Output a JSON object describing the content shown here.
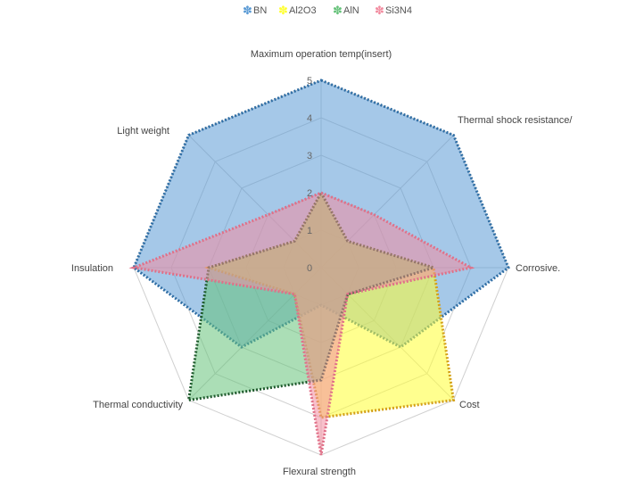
{
  "chart_data": {
    "type": "radar",
    "axes": [
      "Maximum operation temp(insert)",
      "Thermal shock resistance/",
      "Corrosive.",
      "Cost",
      "Flexural strength",
      "Thermal conductivity",
      "Insulation",
      "Light weight"
    ],
    "ticks": [
      "0",
      "1",
      "2",
      "3",
      "4",
      "5"
    ],
    "range": [
      0,
      5
    ],
    "grid": true,
    "legend_position": "top",
    "series": [
      {
        "name": "BN",
        "values": [
          5,
          5,
          5,
          3,
          1,
          3,
          5,
          5
        ],
        "color": "#5b9bd5",
        "border": "#2e6da4"
      },
      {
        "name": "Al2O3",
        "values": [
          2,
          1,
          3,
          5,
          4,
          1,
          3,
          1
        ],
        "color": "#ffff33",
        "border": "#d4a017"
      },
      {
        "name": "AlN",
        "values": [
          2,
          1,
          3,
          1,
          3,
          5,
          3,
          1
        ],
        "color": "#66c27a",
        "border": "#1e5a2c"
      },
      {
        "name": "Si3N4",
        "values": [
          2,
          2,
          4,
          1,
          5,
          1,
          5,
          2
        ],
        "color": "#f28ca0",
        "border": "#e07088"
      }
    ]
  }
}
